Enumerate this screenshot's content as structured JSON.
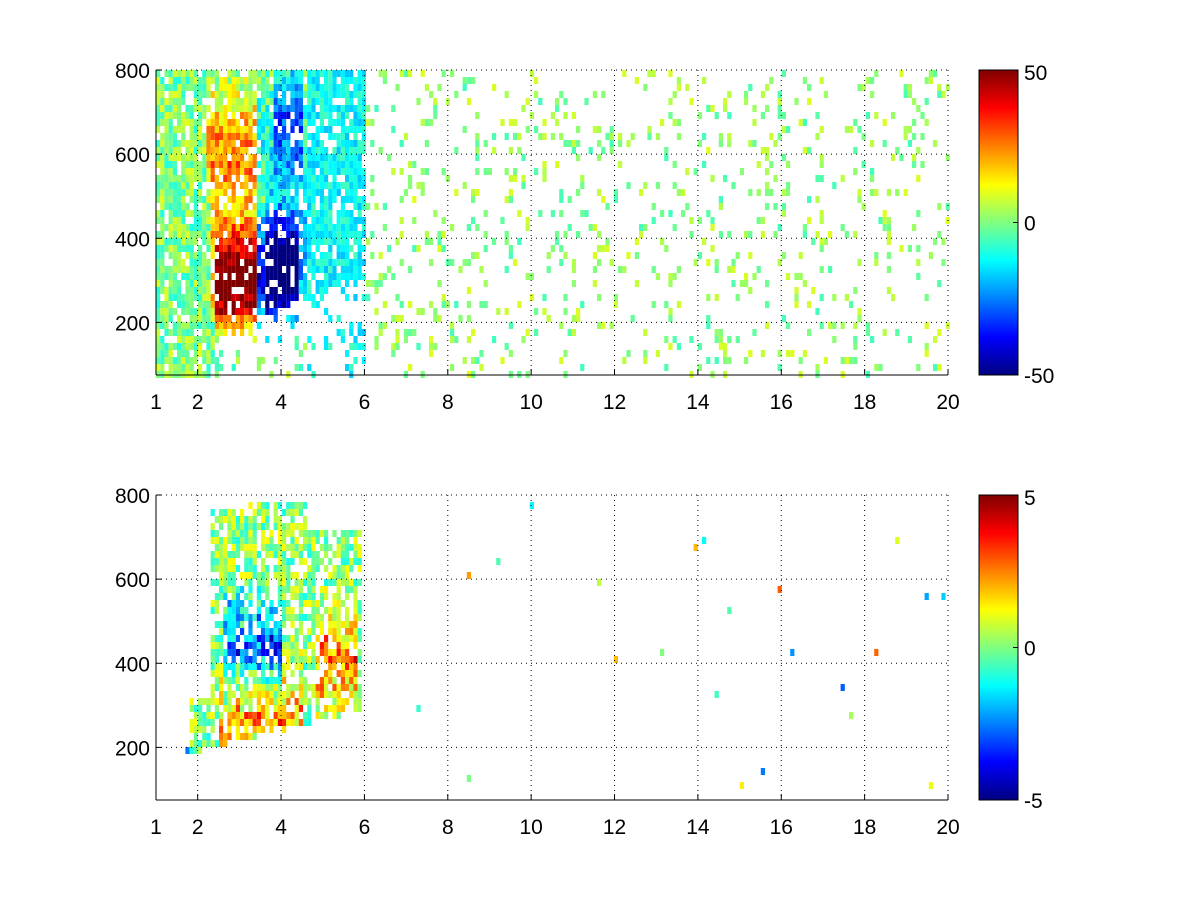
{
  "chart_data": [
    {
      "type": "heatmap",
      "title": "",
      "xlabel": "",
      "ylabel": "",
      "xlim": [
        1,
        20
      ],
      "ylim": [
        75,
        800
      ],
      "xticks": [
        1,
        2,
        4,
        6,
        8,
        10,
        12,
        14,
        16,
        18,
        20
      ],
      "xtick_labels": [
        "1",
        "2",
        "4",
        "6",
        "8",
        "10",
        "12",
        "14",
        "16",
        "18",
        "20"
      ],
      "yticks": [
        200,
        400,
        600,
        800
      ],
      "ytick_labels": [
        "200",
        "400",
        "600",
        "800"
      ],
      "grid": true,
      "colormap": "jet",
      "clim": [
        -50,
        50
      ],
      "colorbar_ticks": [
        50,
        0,
        -50
      ],
      "colorbar_tick_labels": [
        "50",
        "0",
        "-50"
      ],
      "features": [
        {
          "x_range": [
            2.4,
            3.4
          ],
          "y_center": 300,
          "value": 40
        },
        {
          "x_range": [
            3.4,
            4.4
          ],
          "y_center": 320,
          "value": -45
        },
        {
          "x_range": [
            2.2,
            3.4
          ],
          "y_center": 640,
          "value": 25
        },
        {
          "x_range": [
            3.8,
            4.5
          ],
          "y_center": 700,
          "value": -25
        }
      ]
    },
    {
      "type": "heatmap",
      "title": "",
      "xlabel": "",
      "ylabel": "",
      "xlim": [
        1,
        20
      ],
      "ylim": [
        75,
        800
      ],
      "xticks": [
        1,
        2,
        4,
        6,
        8,
        10,
        12,
        14,
        16,
        18,
        20
      ],
      "xtick_labels": [
        "1",
        "2",
        "4",
        "6",
        "8",
        "10",
        "12",
        "14",
        "16",
        "18",
        "20"
      ],
      "yticks": [
        200,
        400,
        600,
        800
      ],
      "ytick_labels": [
        "200",
        "400",
        "600",
        "800"
      ],
      "grid": true,
      "colormap": "jet",
      "clim": [
        -5,
        5
      ],
      "colorbar_ticks": [
        5,
        0,
        -5
      ],
      "colorbar_tick_labels": [
        "5",
        "0",
        "-5"
      ],
      "features": [
        {
          "x_range": [
            2.5,
            4.5
          ],
          "y_center": 280,
          "value": 2.5
        },
        {
          "x_range": [
            2.6,
            4.0
          ],
          "y_center": 450,
          "value": -3.5
        },
        {
          "x_range": [
            4.8,
            5.8
          ],
          "y_center": 420,
          "value": 3
        }
      ]
    }
  ]
}
